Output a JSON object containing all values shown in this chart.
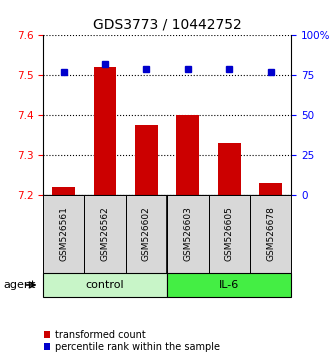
{
  "title": "GDS3773 / 10442752",
  "samples": [
    "GSM526561",
    "GSM526562",
    "GSM526602",
    "GSM526603",
    "GSM526605",
    "GSM526678"
  ],
  "transformed_counts": [
    7.22,
    7.52,
    7.375,
    7.4,
    7.33,
    7.23
  ],
  "percentile_ranks": [
    77,
    82,
    79,
    79,
    79,
    77
  ],
  "ylim_left": [
    7.2,
    7.6
  ],
  "ylim_right": [
    0,
    100
  ],
  "yticks_left": [
    7.2,
    7.3,
    7.4,
    7.5,
    7.6
  ],
  "yticks_right": [
    0,
    25,
    50,
    75,
    100
  ],
  "ytick_labels_right": [
    "0",
    "25",
    "50",
    "75",
    "100%"
  ],
  "groups": [
    {
      "label": "control",
      "indices": [
        0,
        1,
        2
      ],
      "color": "#c8f5c8"
    },
    {
      "label": "IL-6",
      "indices": [
        3,
        4,
        5
      ],
      "color": "#44ee44"
    }
  ],
  "bar_color": "#cc0000",
  "dot_color": "#0000cc",
  "bar_bottom": 7.2,
  "agent_label": "agent",
  "legend_items": [
    {
      "color": "#cc0000",
      "label": "transformed count"
    },
    {
      "color": "#0000cc",
      "label": "percentile rank within the sample"
    }
  ],
  "title_fontsize": 10,
  "tick_fontsize": 7.5,
  "sample_fontsize": 6.5,
  "group_fontsize": 8,
  "legend_fontsize": 7
}
